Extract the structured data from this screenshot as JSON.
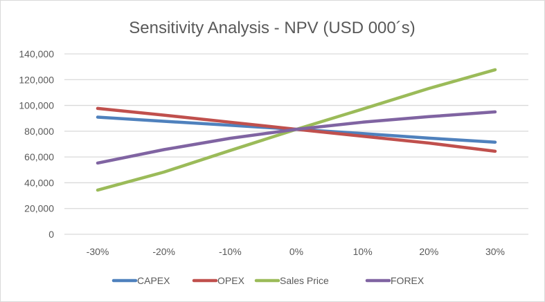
{
  "chart_data": {
    "type": "line",
    "title": "Sensitivity Analysis - NPV (USD 000´s)",
    "xlabel": "",
    "ylabel": "",
    "categories": [
      "-30%",
      "-20%",
      "-10%",
      "0%",
      "10%",
      "20%",
      "30%"
    ],
    "ylim": [
      0,
      140000
    ],
    "yticks": [
      0,
      20000,
      40000,
      60000,
      80000,
      100000,
      120000,
      140000
    ],
    "ytick_labels": [
      "0",
      "20,000",
      "40,000",
      "60,000",
      "80,000",
      "100,000",
      "120,000",
      "140,000"
    ],
    "grid": true,
    "legend_position": "bottom",
    "series": [
      {
        "name": "CAPEX",
        "color": "#4f81bd",
        "values": [
          90900,
          87700,
          84600,
          81500,
          78200,
          74600,
          71500
        ]
      },
      {
        "name": "OPEX",
        "color": "#c0504d",
        "values": [
          97700,
          92500,
          87000,
          81500,
          76100,
          70800,
          64400
        ]
      },
      {
        "name": "Sales Price",
        "color": "#9bbb59",
        "values": [
          34300,
          48300,
          65000,
          81500,
          97200,
          113200,
          127700
        ]
      },
      {
        "name": "FOREX",
        "color": "#8064a2",
        "values": [
          55300,
          65700,
          74500,
          81500,
          87000,
          91300,
          95000
        ]
      }
    ]
  }
}
